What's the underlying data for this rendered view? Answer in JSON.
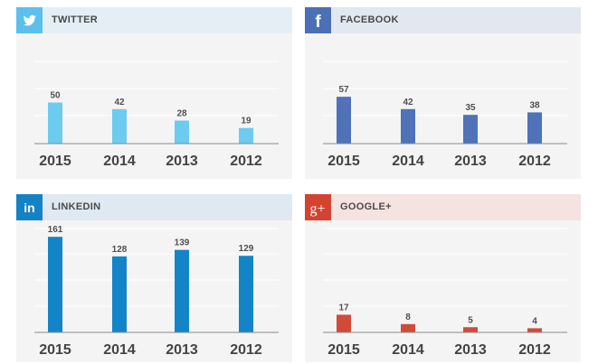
{
  "chart_data": [
    {
      "type": "bar",
      "title": "TWITTER",
      "icon": "twitter-bird-icon",
      "color": "#6ccbee",
      "header_bg": "#e4eef4",
      "categories": [
        "2015",
        "2014",
        "2013",
        "2012"
      ],
      "values": [
        50,
        42,
        28,
        19
      ],
      "ylim": [
        0,
        100
      ],
      "grid": true
    },
    {
      "type": "bar",
      "title": "FACEBOOK",
      "icon": "facebook-f-icon",
      "color": "#4f72b8",
      "header_bg": "#e3e7ef",
      "categories": [
        "2015",
        "2014",
        "2013",
        "2012"
      ],
      "values": [
        57,
        42,
        35,
        38
      ],
      "ylim": [
        0,
        100
      ],
      "grid": true
    },
    {
      "type": "bar",
      "title": "LINKEDIN",
      "icon": "linkedin-in-icon",
      "color": "#1384c7",
      "header_bg": "#dfe9f1",
      "categories": [
        "2015",
        "2014",
        "2013",
        "2012"
      ],
      "values": [
        161,
        128,
        139,
        129
      ],
      "ylim": [
        0,
        175
      ],
      "grid": true
    },
    {
      "type": "bar",
      "title": "GOOGLE+",
      "icon": "google-plus-icon",
      "color": "#d24b38",
      "header_bg": "#f5e3e1",
      "categories": [
        "2015",
        "2014",
        "2013",
        "2012"
      ],
      "values": [
        17,
        8,
        5,
        4
      ],
      "ylim": [
        0,
        100
      ],
      "grid": true
    }
  ],
  "colors": {
    "twitter_icon_bg": "#5bc0eb",
    "facebook_icon_bg": "#4b70b6",
    "linkedin_icon_bg": "#1582c5",
    "google_icon_bg": "#d24332",
    "panel_bg": "#f4f4f4",
    "grid": "#ffffff",
    "baseline": "#8a8a8a"
  },
  "icons": {
    "twitter": "twitter-bird-icon",
    "facebook": "facebook-f-icon",
    "facebook_glyph": "f",
    "linkedin": "linkedin-in-icon",
    "linkedin_glyph": "in",
    "google": "google-plus-icon",
    "google_glyph": "g+"
  }
}
